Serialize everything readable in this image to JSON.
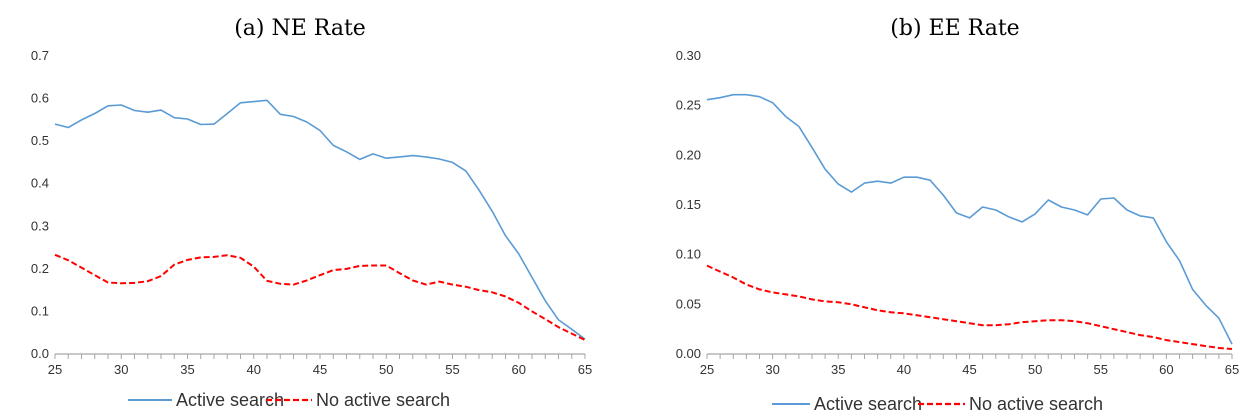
{
  "chart_data": [
    {
      "type": "line",
      "title": "(a) NE Rate",
      "xlabel": "",
      "ylabel": "",
      "xlim": [
        25,
        65
      ],
      "ylim": [
        0,
        0.7
      ],
      "x_ticks": [
        25,
        30,
        35,
        40,
        45,
        50,
        55,
        60,
        65
      ],
      "y_ticks": [
        "0.0",
        "0.1",
        "0.2",
        "0.3",
        "0.4",
        "0.5",
        "0.6",
        "0.7"
      ],
      "grid": false,
      "legend_position": "bottom",
      "x": [
        25,
        26,
        27,
        28,
        29,
        30,
        31,
        32,
        33,
        34,
        35,
        36,
        37,
        38,
        39,
        40,
        41,
        42,
        43,
        44,
        45,
        46,
        47,
        48,
        49,
        50,
        51,
        52,
        53,
        54,
        55,
        56,
        57,
        58,
        59,
        60,
        61,
        62,
        63,
        64,
        65
      ],
      "series": [
        {
          "name": "Active search",
          "color": "#5b9bd5",
          "dash": "solid",
          "values": [
            0.54,
            0.532,
            0.55,
            0.565,
            0.583,
            0.585,
            0.572,
            0.568,
            0.573,
            0.555,
            0.552,
            0.539,
            0.54,
            0.565,
            0.59,
            0.593,
            0.596,
            0.563,
            0.558,
            0.545,
            0.525,
            0.49,
            0.475,
            0.457,
            0.47,
            0.46,
            0.463,
            0.466,
            0.463,
            0.458,
            0.45,
            0.43,
            0.385,
            0.335,
            0.278,
            0.235,
            0.18,
            0.125,
            0.08,
            0.058,
            0.035
          ]
        },
        {
          "name": "No active search",
          "color": "#ff0000",
          "dash": "dashed",
          "values": [
            0.233,
            0.22,
            0.203,
            0.185,
            0.168,
            0.166,
            0.167,
            0.171,
            0.183,
            0.21,
            0.221,
            0.227,
            0.228,
            0.232,
            0.226,
            0.205,
            0.172,
            0.165,
            0.163,
            0.173,
            0.185,
            0.197,
            0.2,
            0.207,
            0.208,
            0.208,
            0.19,
            0.173,
            0.163,
            0.17,
            0.163,
            0.158,
            0.15,
            0.145,
            0.135,
            0.12,
            0.1,
            0.082,
            0.063,
            0.048,
            0.033
          ]
        }
      ]
    },
    {
      "type": "line",
      "title": "(b) EE Rate",
      "xlabel": "",
      "ylabel": "",
      "xlim": [
        25,
        65
      ],
      "ylim": [
        0,
        0.3
      ],
      "x_ticks": [
        25,
        30,
        35,
        40,
        45,
        50,
        55,
        60,
        65
      ],
      "y_ticks": [
        "0.00",
        "0.05",
        "0.10",
        "0.15",
        "0.20",
        "0.25",
        "0.30"
      ],
      "grid": false,
      "legend_position": "bottom",
      "x": [
        25,
        26,
        27,
        28,
        29,
        30,
        31,
        32,
        33,
        34,
        35,
        36,
        37,
        38,
        39,
        40,
        41,
        42,
        43,
        44,
        45,
        46,
        47,
        48,
        49,
        50,
        51,
        52,
        53,
        54,
        55,
        56,
        57,
        58,
        59,
        60,
        61,
        62,
        63,
        64,
        65
      ],
      "series": [
        {
          "name": "Active search",
          "color": "#5b9bd5",
          "dash": "solid",
          "values": [
            0.256,
            0.258,
            0.261,
            0.261,
            0.259,
            0.253,
            0.239,
            0.229,
            0.208,
            0.186,
            0.171,
            0.163,
            0.172,
            0.174,
            0.172,
            0.178,
            0.178,
            0.175,
            0.16,
            0.142,
            0.137,
            0.148,
            0.145,
            0.138,
            0.133,
            0.141,
            0.155,
            0.148,
            0.145,
            0.14,
            0.156,
            0.157,
            0.145,
            0.139,
            0.137,
            0.113,
            0.094,
            0.065,
            0.049,
            0.036,
            0.01
          ]
        },
        {
          "name": "No active search",
          "color": "#ff0000",
          "dash": "dashed",
          "values": [
            0.089,
            0.083,
            0.077,
            0.07,
            0.065,
            0.062,
            0.06,
            0.058,
            0.055,
            0.053,
            0.052,
            0.05,
            0.047,
            0.044,
            0.042,
            0.041,
            0.039,
            0.037,
            0.035,
            0.033,
            0.031,
            0.029,
            0.029,
            0.03,
            0.032,
            0.033,
            0.034,
            0.034,
            0.033,
            0.031,
            0.028,
            0.025,
            0.022,
            0.019,
            0.017,
            0.014,
            0.012,
            0.01,
            0.008,
            0.006,
            0.005
          ]
        }
      ]
    }
  ]
}
